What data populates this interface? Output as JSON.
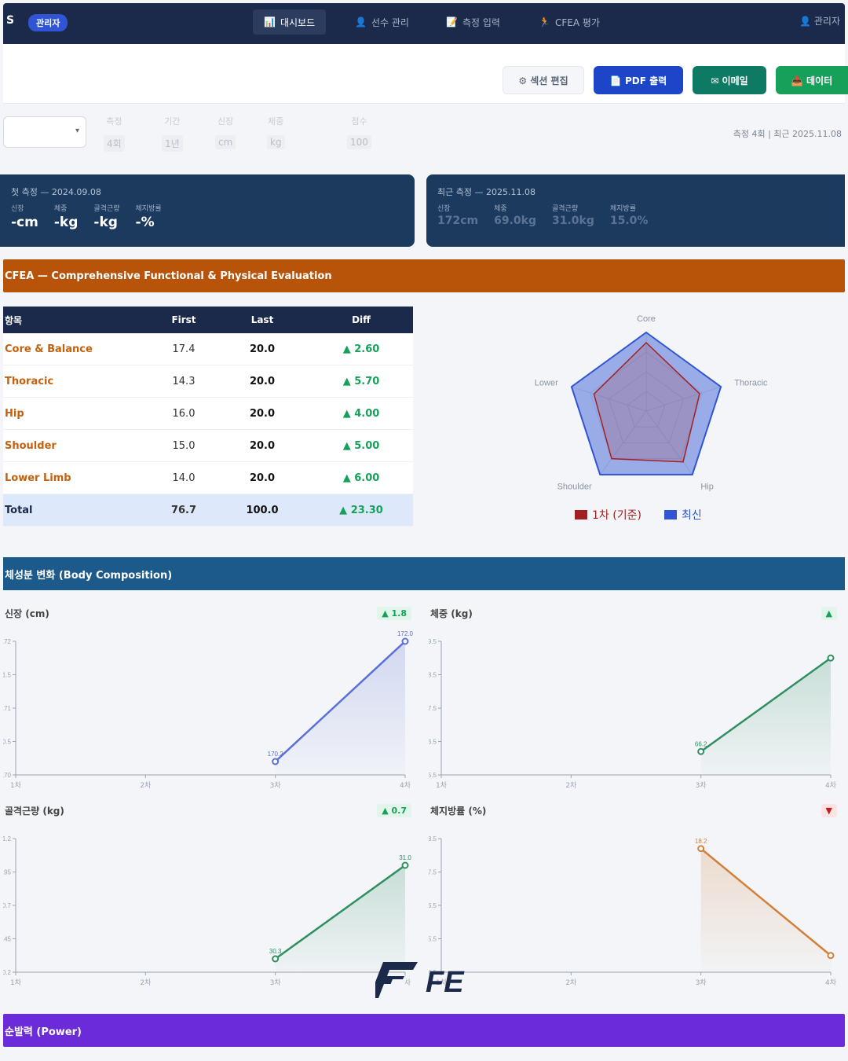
{
  "nav": {
    "brand": "S",
    "pill": "관리자",
    "tabs": [
      {
        "icon": "📊",
        "label": "대시보드",
        "active": true
      },
      {
        "icon": "👤",
        "label": "선수 관리",
        "active": false
      },
      {
        "icon": "📝",
        "label": "측정 입력",
        "active": false
      },
      {
        "icon": "🏃",
        "label": "CFEA 평가",
        "active": false
      }
    ],
    "user": "👤 관리자"
  },
  "actions": {
    "ghost": "⚙ 섹션 편집",
    "pdf": "📄 PDF 출력",
    "msg": "✉ 이메일",
    "data": "📥 데이터"
  },
  "filter": {
    "select_value": "",
    "stats": [
      {
        "label": "측정",
        "value": "4회"
      },
      {
        "label": "기간",
        "value": "1년"
      },
      {
        "label": "신장",
        "value": "cm"
      },
      {
        "label": "체중",
        "value": "kg"
      },
      {
        "label": "점수",
        "value": "100"
      }
    ],
    "meta": "측정 4회 | 최근 2025.11.08"
  },
  "cards": {
    "first": {
      "title": "첫 측정 — 2024.09.08",
      "cols": [
        {
          "label": "신장",
          "value": "-cm"
        },
        {
          "label": "체중",
          "value": "-kg"
        },
        {
          "label": "골격근량",
          "value": "-kg"
        },
        {
          "label": "체지방률",
          "value": "-%"
        }
      ]
    },
    "last": {
      "title": "최근 측정 — 2025.11.08",
      "cols": [
        {
          "label": "신장",
          "value": "172cm"
        },
        {
          "label": "체중",
          "value": "69.0kg"
        },
        {
          "label": "골격근량",
          "value": "31.0kg"
        },
        {
          "label": "체지방률",
          "value": "15.0%"
        }
      ]
    }
  },
  "sections": {
    "cfea": "CFEA — Comprehensive Functional & Physical Evaluation",
    "body": "체성분 변화 (Body Composition)",
    "power": "순발력 (Power)"
  },
  "cfea_table": {
    "headers": [
      "항목",
      "First",
      "Last",
      "Diff"
    ],
    "rows": [
      {
        "name": "Core & Balance",
        "first": "17.4",
        "last": "20.0",
        "diff": "▲ 2.60"
      },
      {
        "name": "Thoracic",
        "first": "14.3",
        "last": "20.0",
        "diff": "▲ 5.70"
      },
      {
        "name": "Hip",
        "first": "16.0",
        "last": "20.0",
        "diff": "▲ 4.00"
      },
      {
        "name": "Shoulder",
        "first": "15.0",
        "last": "20.0",
        "diff": "▲ 5.00"
      },
      {
        "name": "Lower Limb",
        "first": "14.0",
        "last": "20.0",
        "diff": "▲ 6.00"
      }
    ],
    "total": {
      "name": "Total",
      "first": "76.7",
      "last": "100.0",
      "diff": "▲ 23.30"
    }
  },
  "radar": {
    "axes": [
      "Core",
      "Thoracic",
      "Hip",
      "Shoulder",
      "Lower"
    ],
    "first": [
      17.4,
      14.3,
      16.0,
      15.0,
      14.0
    ],
    "last": [
      20.0,
      20.0,
      20.0,
      20.0,
      20.0
    ],
    "max": 20,
    "legend_first": "1차 (기준)",
    "legend_last": "최신",
    "color_first": "#a32020",
    "color_last": "#2f55d4"
  },
  "chart_data": [
    {
      "type": "line",
      "title": "신장 (cm)",
      "badge": "▲ 1.8",
      "trend": "up",
      "color": "#5b6fd6",
      "x": [
        "1차",
        "2차",
        "3차",
        "4차"
      ],
      "values": [
        null,
        null,
        170.2,
        172.0
      ],
      "point_labels": [
        "",
        "",
        "170.2",
        "172.0"
      ],
      "ylim": [
        170,
        172
      ],
      "yticks": [
        "170",
        "170.5",
        "171",
        "171.5",
        "172"
      ]
    },
    {
      "type": "line",
      "title": "체중 (kg)",
      "badge": "▲",
      "trend": "up",
      "color": "#2f8f62",
      "x": [
        "1차",
        "2차",
        "3차",
        "4차"
      ],
      "values": [
        null,
        null,
        66.2,
        69.0
      ],
      "point_labels": [
        "",
        "",
        "66.2",
        ""
      ],
      "ylim": [
        65.5,
        69.5
      ],
      "yticks": [
        "65.5",
        "66.5",
        "67.5",
        "68.5",
        "69.5"
      ]
    },
    {
      "type": "line",
      "title": "골격근량 (kg)",
      "badge": "▲ 0.7",
      "trend": "up",
      "color": "#2f8f62",
      "x": [
        "1차",
        "2차",
        "3차",
        "4차"
      ],
      "values": [
        null,
        null,
        30.3,
        31.0
      ],
      "point_labels": [
        "",
        "",
        "30.3",
        "31.0"
      ],
      "ylim": [
        30.2,
        31.2
      ],
      "yticks": [
        "30.2",
        "30.45",
        "30.7",
        "30.95",
        "31.2"
      ]
    },
    {
      "type": "line",
      "title": "체지방률 (%)",
      "badge": "▼",
      "trend": "down",
      "color": "#d2803a",
      "x": [
        "1차",
        "2차",
        "3차",
        "4차"
      ],
      "values": [
        null,
        null,
        18.2,
        15.0
      ],
      "point_labels": [
        "",
        "",
        "18.2",
        ""
      ],
      "ylim": [
        14.5,
        18.5
      ],
      "yticks": [
        "14.5",
        "15.5",
        "16.5",
        "17.5",
        "18.5"
      ]
    }
  ],
  "logo": {
    "text": "FE",
    "color": "#1b2a4a"
  }
}
